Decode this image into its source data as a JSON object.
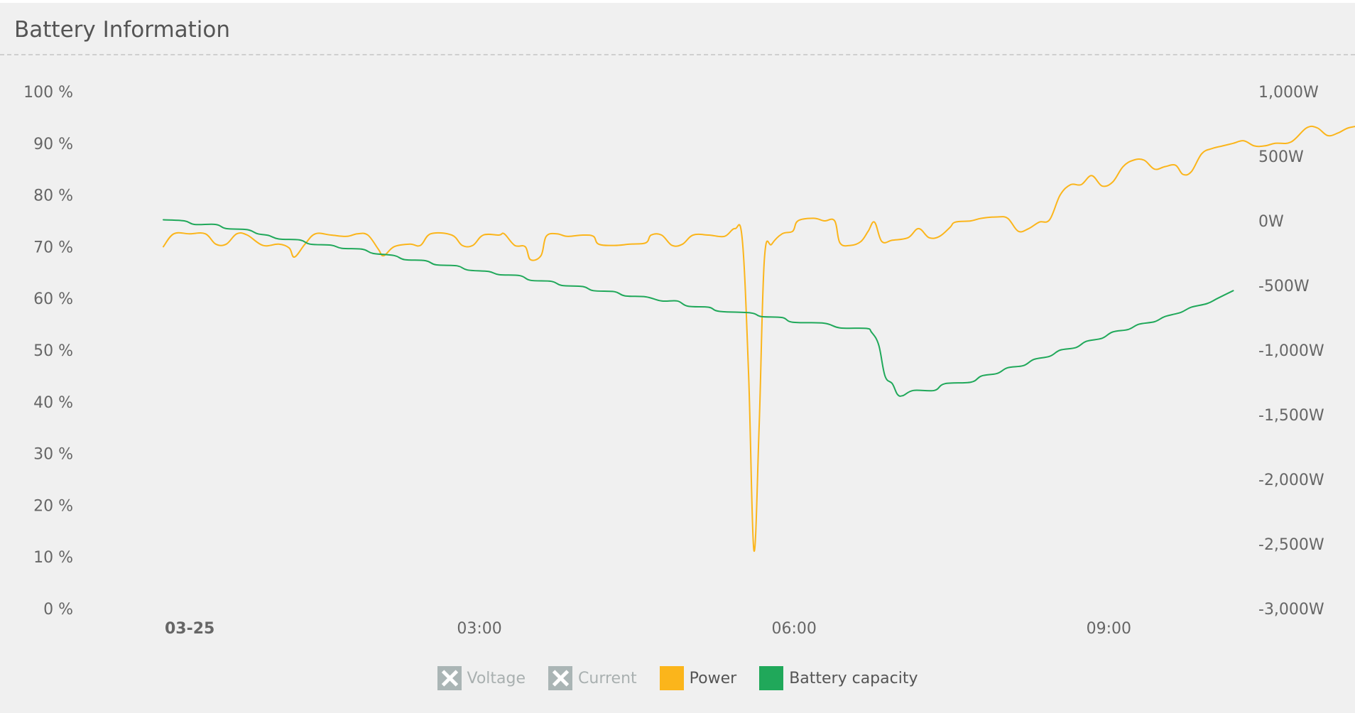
{
  "panel": {
    "title": "Battery Information"
  },
  "chart_data": {
    "type": "line",
    "title": "",
    "y_left": {
      "ticks": [
        "100 %",
        "90 %",
        "80 %",
        "70 %",
        "60 %",
        "50 %",
        "40 %",
        "30 %",
        "20 %",
        "10 %",
        "0 %"
      ],
      "range": [
        0,
        100
      ]
    },
    "y_right": {
      "ticks": [
        "1,000W",
        "500W",
        "0W",
        "-500W",
        "-1,000W",
        "-1,500W",
        "-2,000W",
        "-2,500W",
        "-3,000W"
      ],
      "range": [
        -3000,
        1000
      ]
    },
    "x": {
      "ticks": [
        {
          "label": "03-25",
          "hour": 0,
          "bold": true
        },
        {
          "label": "03:00",
          "hour": 3,
          "bold": false
        },
        {
          "label": "06:00",
          "hour": 6,
          "bold": false
        },
        {
          "label": "09:00",
          "hour": 9,
          "bold": false
        }
      ],
      "range_hours": [
        -0.25,
        10.5
      ]
    },
    "series": [
      {
        "name": "Power",
        "color": "#fbb51b",
        "axis": "right",
        "points": [
          [
            0.0,
            -200
          ],
          [
            0.1,
            -100
          ],
          [
            0.25,
            -100
          ],
          [
            0.4,
            -100
          ],
          [
            0.5,
            -180
          ],
          [
            0.6,
            -180
          ],
          [
            0.7,
            -100
          ],
          [
            0.8,
            -110
          ],
          [
            0.95,
            -190
          ],
          [
            1.1,
            -180
          ],
          [
            1.2,
            -210
          ],
          [
            1.25,
            -280
          ],
          [
            1.35,
            -180
          ],
          [
            1.45,
            -100
          ],
          [
            1.6,
            -110
          ],
          [
            1.75,
            -120
          ],
          [
            1.85,
            -100
          ],
          [
            1.95,
            -110
          ],
          [
            2.05,
            -220
          ],
          [
            2.1,
            -270
          ],
          [
            2.2,
            -200
          ],
          [
            2.35,
            -180
          ],
          [
            2.45,
            -190
          ],
          [
            2.55,
            -100
          ],
          [
            2.75,
            -110
          ],
          [
            2.85,
            -190
          ],
          [
            2.95,
            -190
          ],
          [
            3.05,
            -110
          ],
          [
            3.2,
            -110
          ],
          [
            3.25,
            -100
          ],
          [
            3.35,
            -190
          ],
          [
            3.45,
            -200
          ],
          [
            3.5,
            -300
          ],
          [
            3.6,
            -270
          ],
          [
            3.65,
            -120
          ],
          [
            3.75,
            -100
          ],
          [
            3.85,
            -120
          ],
          [
            4.0,
            -110
          ],
          [
            4.1,
            -120
          ],
          [
            4.15,
            -180
          ],
          [
            4.3,
            -190
          ],
          [
            4.45,
            -180
          ],
          [
            4.6,
            -170
          ],
          [
            4.65,
            -110
          ],
          [
            4.75,
            -110
          ],
          [
            4.85,
            -190
          ],
          [
            4.95,
            -180
          ],
          [
            5.05,
            -110
          ],
          [
            5.2,
            -110
          ],
          [
            5.35,
            -120
          ],
          [
            5.45,
            -60
          ],
          [
            5.52,
            -150
          ],
          [
            5.58,
            -1200
          ],
          [
            5.63,
            -2550
          ],
          [
            5.68,
            -1600
          ],
          [
            5.73,
            -300
          ],
          [
            5.8,
            -180
          ],
          [
            5.9,
            -100
          ],
          [
            6.0,
            -80
          ],
          [
            6.05,
            0
          ],
          [
            6.2,
            20
          ],
          [
            6.3,
            0
          ],
          [
            6.4,
            0
          ],
          [
            6.45,
            -170
          ],
          [
            6.55,
            -190
          ],
          [
            6.65,
            -160
          ],
          [
            6.72,
            -80
          ],
          [
            6.78,
            -10
          ],
          [
            6.85,
            -160
          ],
          [
            6.95,
            -150
          ],
          [
            7.1,
            -130
          ],
          [
            7.2,
            -60
          ],
          [
            7.3,
            -130
          ],
          [
            7.4,
            -120
          ],
          [
            7.5,
            -50
          ],
          [
            7.55,
            -10
          ],
          [
            7.7,
            0
          ],
          [
            7.8,
            20
          ],
          [
            7.95,
            30
          ],
          [
            8.05,
            20
          ],
          [
            8.15,
            -80
          ],
          [
            8.25,
            -60
          ],
          [
            8.35,
            -10
          ],
          [
            8.45,
            10
          ],
          [
            8.55,
            200
          ],
          [
            8.65,
            280
          ],
          [
            8.75,
            280
          ],
          [
            8.85,
            350
          ],
          [
            8.95,
            270
          ],
          [
            9.05,
            300
          ],
          [
            9.15,
            420
          ],
          [
            9.25,
            470
          ],
          [
            9.35,
            470
          ],
          [
            9.45,
            400
          ],
          [
            9.55,
            420
          ],
          [
            9.65,
            430
          ],
          [
            9.72,
            360
          ],
          [
            9.8,
            380
          ],
          [
            9.9,
            520
          ],
          [
            10.0,
            560
          ],
          [
            10.1,
            580
          ],
          [
            10.2,
            600
          ],
          [
            10.3,
            620
          ],
          [
            10.4,
            580
          ],
          [
            10.5,
            580
          ],
          [
            10.6,
            600
          ],
          [
            10.75,
            610
          ],
          [
            10.9,
            720
          ],
          [
            11.0,
            720
          ],
          [
            11.1,
            660
          ],
          [
            11.2,
            680
          ],
          [
            11.3,
            720
          ],
          [
            11.45,
            740
          ]
        ]
      },
      {
        "name": "Battery capacity",
        "color": "#20a85a",
        "axis": "left",
        "points": [
          [
            0.0,
            75.2
          ],
          [
            0.2,
            75
          ],
          [
            0.3,
            74.3
          ],
          [
            0.5,
            74.3
          ],
          [
            0.6,
            73.5
          ],
          [
            0.8,
            73.3
          ],
          [
            0.9,
            72.5
          ],
          [
            1.0,
            72.2
          ],
          [
            1.1,
            71.5
          ],
          [
            1.3,
            71.3
          ],
          [
            1.4,
            70.5
          ],
          [
            1.6,
            70.3
          ],
          [
            1.7,
            69.7
          ],
          [
            1.9,
            69.5
          ],
          [
            2.0,
            68.7
          ],
          [
            2.2,
            68.3
          ],
          [
            2.3,
            67.5
          ],
          [
            2.5,
            67.3
          ],
          [
            2.6,
            66.5
          ],
          [
            2.8,
            66.3
          ],
          [
            2.9,
            65.5
          ],
          [
            3.1,
            65.2
          ],
          [
            3.2,
            64.6
          ],
          [
            3.4,
            64.4
          ],
          [
            3.5,
            63.5
          ],
          [
            3.7,
            63.3
          ],
          [
            3.8,
            62.5
          ],
          [
            4.0,
            62.3
          ],
          [
            4.1,
            61.5
          ],
          [
            4.3,
            61.3
          ],
          [
            4.4,
            60.5
          ],
          [
            4.6,
            60.3
          ],
          [
            4.75,
            59.5
          ],
          [
            4.9,
            59.5
          ],
          [
            5.0,
            58.5
          ],
          [
            5.2,
            58.3
          ],
          [
            5.3,
            57.5
          ],
          [
            5.6,
            57.2
          ],
          [
            5.7,
            56.5
          ],
          [
            5.9,
            56.3
          ],
          [
            6.0,
            55.4
          ],
          [
            6.3,
            55.2
          ],
          [
            6.45,
            54.3
          ],
          [
            6.7,
            54.2
          ],
          [
            6.75,
            53.5
          ],
          [
            6.82,
            51
          ],
          [
            6.88,
            45
          ],
          [
            6.95,
            43.5
          ],
          [
            7.0,
            41.4
          ],
          [
            7.05,
            41.2
          ],
          [
            7.15,
            42.2
          ],
          [
            7.35,
            42.2
          ],
          [
            7.45,
            43.5
          ],
          [
            7.7,
            43.8
          ],
          [
            7.8,
            45
          ],
          [
            7.95,
            45.5
          ],
          [
            8.05,
            46.6
          ],
          [
            8.2,
            47
          ],
          [
            8.3,
            48.2
          ],
          [
            8.45,
            48.8
          ],
          [
            8.55,
            50
          ],
          [
            8.7,
            50.5
          ],
          [
            8.8,
            51.7
          ],
          [
            8.95,
            52.3
          ],
          [
            9.05,
            53.5
          ],
          [
            9.2,
            54
          ],
          [
            9.3,
            55
          ],
          [
            9.45,
            55.5
          ],
          [
            9.55,
            56.5
          ],
          [
            9.7,
            57.3
          ],
          [
            9.8,
            58.3
          ],
          [
            9.95,
            59
          ],
          [
            10.05,
            60
          ],
          [
            10.2,
            61.5
          ]
        ]
      }
    ],
    "legend": {
      "placement": "bottom-center",
      "items": [
        {
          "label": "Voltage",
          "enabled": false,
          "color": "#aab5b5"
        },
        {
          "label": "Current",
          "enabled": false,
          "color": "#aab5b5"
        },
        {
          "label": "Power",
          "enabled": true,
          "color": "#fbb51b"
        },
        {
          "label": "Battery capacity",
          "enabled": true,
          "color": "#20a85a"
        }
      ]
    },
    "grid": false
  }
}
